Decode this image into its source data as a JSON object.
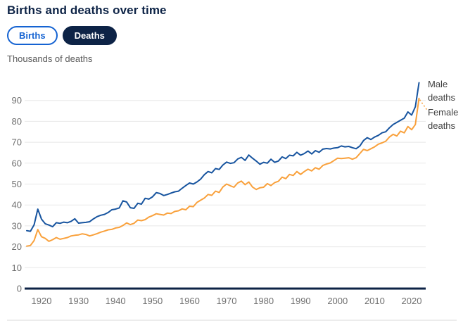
{
  "header": {
    "title": "Births and deaths over time"
  },
  "toggle": {
    "births_label": "Births",
    "deaths_label": "Deaths",
    "selected": "Deaths"
  },
  "colors": {
    "navy": "#0D2346",
    "toggle_blue": "#1563D2",
    "male_line": "#17549F",
    "female_line": "#F9A13C",
    "gridline": "#E8E8E8",
    "axis_text": "#6F6F6F",
    "series_label_text": "#3F3F3F",
    "divider": "#D9D9D9"
  },
  "chart_data": {
    "type": "line",
    "title": "Births and deaths over time",
    "ylabel": "Thousands of deaths",
    "xlabel": "",
    "grid": "horizontal",
    "legend_position": "line-end-labels-right",
    "ylim": [
      0,
      100
    ],
    "y_ticks": [
      0,
      10,
      20,
      30,
      40,
      50,
      60,
      70,
      80,
      90
    ],
    "x_ticks": [
      1920,
      1930,
      1940,
      1950,
      1960,
      1970,
      1980,
      1990,
      2000,
      2010,
      2020
    ],
    "start_year": 1916,
    "end_year": 2022,
    "series": [
      {
        "name": "Male deaths",
        "color": "#17549F",
        "values": [
          27.7,
          27.4,
          30.5,
          38.0,
          33.2,
          31.0,
          30.4,
          29.6,
          31.5,
          31.2,
          31.8,
          31.5,
          32.2,
          33.4,
          31.3,
          31.5,
          31.7,
          32.0,
          33.3,
          34.4,
          35.1,
          35.5,
          36.4,
          37.7,
          38.0,
          38.6,
          42.0,
          41.4,
          38.7,
          38.4,
          40.8,
          40.4,
          43.2,
          42.8,
          43.9,
          45.9,
          45.5,
          44.5,
          45.0,
          45.7,
          46.3,
          46.6,
          48.0,
          49.3,
          50.5,
          50.0,
          51.0,
          52.4,
          54.5,
          56.0,
          55.4,
          57.4,
          57.0,
          59.1,
          60.5,
          59.9,
          60.2,
          62.0,
          62.8,
          61.3,
          63.9,
          62.4,
          61.0,
          59.5,
          60.4,
          60.0,
          61.9,
          60.4,
          61.0,
          63.0,
          62.2,
          63.8,
          63.5,
          65.2,
          63.8,
          64.6,
          65.8,
          64.4,
          66.0,
          65.2,
          66.7,
          67.0,
          66.8,
          67.2,
          67.4,
          68.2,
          67.8,
          68.0,
          67.4,
          66.9,
          68.2,
          70.8,
          72.2,
          71.3,
          72.5,
          73.3,
          74.5,
          75.0,
          76.9,
          78.5,
          79.5,
          80.5,
          81.5,
          84.5,
          83.0,
          87.0,
          98.5
        ]
      },
      {
        "name": "Female deaths",
        "color": "#F9A13C",
        "values": [
          20.3,
          20.6,
          23.0,
          28.2,
          24.8,
          24.0,
          22.6,
          23.4,
          24.4,
          23.6,
          24.0,
          24.4,
          25.2,
          25.5,
          25.7,
          26.2,
          25.9,
          25.2,
          25.7,
          26.3,
          27.0,
          27.5,
          28.1,
          28.3,
          29.0,
          29.3,
          30.2,
          31.4,
          30.6,
          31.2,
          32.8,
          32.5,
          33.0,
          34.2,
          34.9,
          35.8,
          35.5,
          35.2,
          36.1,
          35.9,
          36.9,
          37.2,
          38.1,
          37.7,
          39.4,
          39.2,
          41.2,
          42.3,
          43.3,
          45.0,
          44.6,
          46.6,
          46.0,
          48.6,
          50.0,
          49.2,
          48.5,
          50.5,
          51.4,
          49.7,
          51.0,
          48.6,
          47.4,
          48.2,
          48.5,
          50.2,
          49.3,
          50.7,
          51.3,
          53.3,
          52.6,
          54.6,
          54.1,
          56.0,
          54.6,
          56.0,
          57.1,
          56.3,
          57.8,
          57.1,
          58.9,
          59.6,
          60.1,
          61.2,
          62.4,
          62.2,
          62.4,
          62.6,
          61.9,
          62.6,
          64.6,
          66.6,
          66.0,
          66.9,
          67.8,
          69.1,
          69.7,
          70.5,
          72.5,
          73.8,
          73.0,
          75.3,
          74.5,
          77.5,
          76.0,
          78.5,
          91.0
        ]
      }
    ]
  }
}
